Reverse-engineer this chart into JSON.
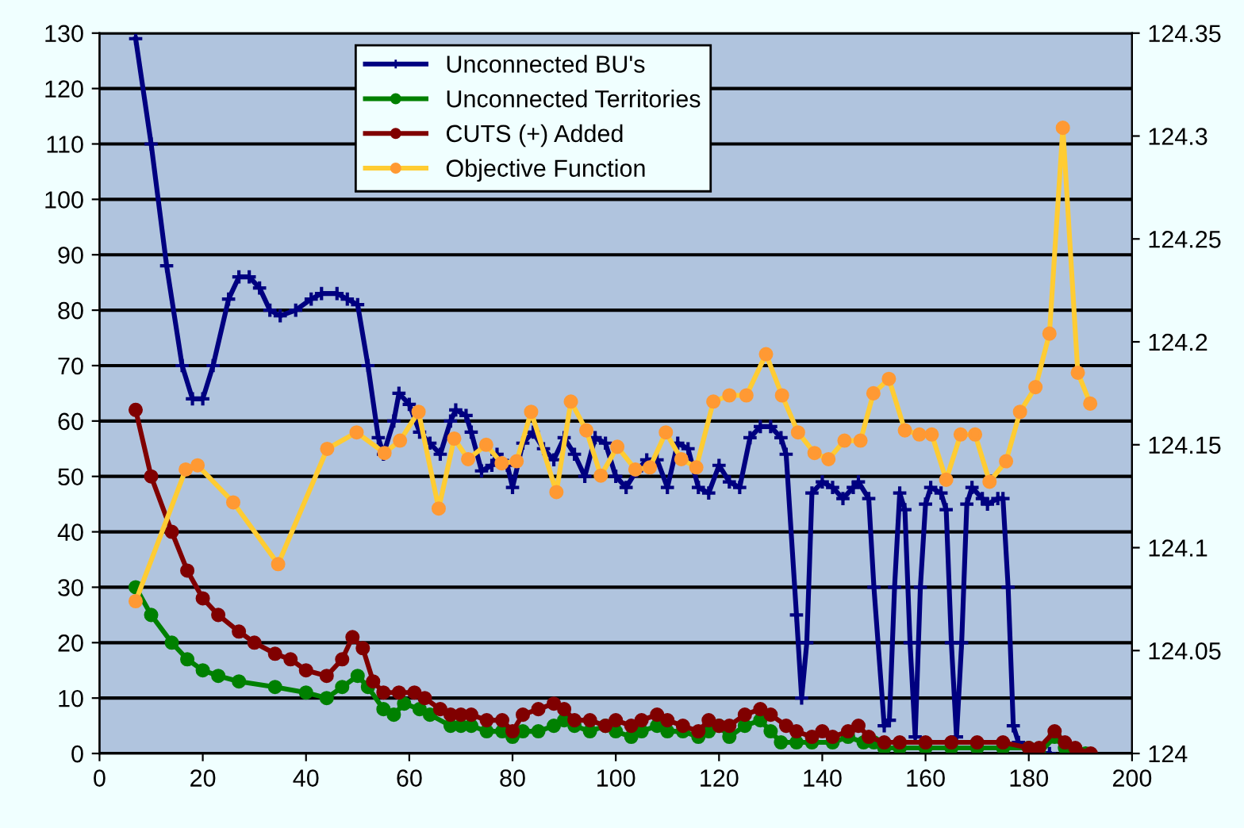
{
  "chart_data": {
    "type": "line",
    "xlim": [
      0,
      200
    ],
    "xticks": [
      0,
      20,
      40,
      60,
      80,
      100,
      120,
      140,
      160,
      180,
      200
    ],
    "ylim": [
      0,
      130
    ],
    "yticks": [
      0,
      10,
      20,
      30,
      40,
      50,
      60,
      70,
      80,
      90,
      100,
      110,
      120,
      130
    ],
    "y2lim": [
      124,
      124.35
    ],
    "y2ticks": [
      124,
      124.05,
      124.1,
      124.15,
      124.2,
      124.25,
      124.3,
      124.35
    ],
    "grid": "y",
    "legend": "top",
    "series": [
      {
        "name": "Unconnected BU's",
        "color": "#000080",
        "marker": "cross",
        "x": [
          7,
          10,
          13,
          16,
          18,
          20,
          22,
          25,
          27,
          29,
          31,
          33,
          35,
          38,
          41,
          43,
          46,
          48,
          50,
          52,
          54,
          55,
          57,
          58,
          60,
          62,
          64,
          66,
          68,
          69,
          71,
          72,
          74,
          76,
          77,
          79,
          80,
          82,
          84,
          86,
          88,
          90,
          92,
          94,
          96,
          98,
          100,
          102,
          104,
          106,
          108,
          110,
          112,
          114,
          116,
          118,
          120,
          122,
          124,
          126,
          128,
          130,
          132,
          133,
          135,
          136,
          137,
          138,
          140,
          142,
          144,
          146,
          147,
          149,
          150,
          152,
          153,
          154,
          155,
          156,
          157,
          158,
          159,
          160,
          161,
          163,
          164,
          165,
          166,
          167,
          168,
          169,
          171,
          172,
          174,
          175,
          176,
          177,
          178,
          180,
          182,
          184
        ],
        "values": [
          129,
          110,
          88,
          70,
          64,
          64,
          70,
          82,
          86,
          86,
          84,
          80,
          79,
          80,
          82,
          83,
          83,
          82,
          81,
          70,
          57,
          54,
          60,
          65,
          63,
          58,
          56,
          54,
          60,
          62,
          61,
          58,
          51,
          52,
          54,
          52,
          48,
          56,
          58,
          55,
          53,
          57,
          54,
          50,
          57,
          56,
          50,
          48,
          51,
          53,
          53,
          48,
          56,
          55,
          48,
          47,
          52,
          49,
          48,
          57,
          59,
          59,
          57,
          54,
          25,
          10,
          20,
          47,
          49,
          48,
          46,
          48,
          49,
          46,
          30,
          5,
          6,
          30,
          47,
          44,
          20,
          3,
          30,
          45,
          48,
          47,
          44,
          20,
          3,
          20,
          45,
          48,
          46,
          45,
          46,
          46,
          30,
          5,
          2,
          1,
          0,
          0
        ]
      },
      {
        "name": "Unconnected Territories",
        "color": "#008000",
        "marker": "circle",
        "x": [
          7,
          10,
          14,
          17,
          20,
          23,
          27,
          34,
          40,
          44,
          47,
          50,
          52,
          55,
          57,
          59,
          62,
          64,
          68,
          70,
          72,
          75,
          78,
          80,
          82,
          85,
          88,
          90,
          92,
          95,
          98,
          100,
          103,
          105,
          108,
          110,
          113,
          116,
          118,
          120,
          122,
          125,
          128,
          130,
          132,
          135,
          138,
          142,
          145,
          148,
          150,
          152,
          155,
          160,
          165,
          170,
          175,
          180,
          182,
          185,
          187,
          189,
          191
        ],
        "values": [
          30,
          25,
          20,
          17,
          15,
          14,
          13,
          12,
          11,
          10,
          12,
          14,
          12,
          8,
          7,
          9,
          8,
          7,
          5,
          5,
          5,
          4,
          4,
          3,
          4,
          4,
          5,
          6,
          5,
          4,
          5,
          4,
          3,
          4,
          5,
          4,
          4,
          3,
          4,
          5,
          3,
          5,
          6,
          4,
          2,
          2,
          2,
          2,
          3,
          2,
          2,
          1,
          1,
          1,
          1,
          1,
          1,
          1,
          0,
          3,
          1,
          0,
          0
        ]
      },
      {
        "name": "CUTS (+) Added",
        "color": "#800000",
        "marker": "circle",
        "x": [
          7,
          10,
          14,
          17,
          20,
          23,
          27,
          30,
          34,
          37,
          40,
          44,
          47,
          49,
          51,
          53,
          55,
          58,
          61,
          63,
          66,
          68,
          70,
          72,
          75,
          78,
          80,
          82,
          85,
          88,
          90,
          92,
          95,
          98,
          100,
          103,
          105,
          108,
          110,
          113,
          116,
          118,
          120,
          122,
          125,
          128,
          130,
          133,
          135,
          138,
          140,
          142,
          145,
          147,
          149,
          152,
          155,
          160,
          165,
          170,
          175,
          180,
          182,
          185,
          187,
          189,
          192
        ],
        "values": [
          62,
          50,
          40,
          33,
          28,
          25,
          22,
          20,
          18,
          17,
          15,
          14,
          17,
          21,
          19,
          13,
          11,
          11,
          11,
          10,
          8,
          7,
          7,
          7,
          6,
          6,
          4,
          7,
          8,
          9,
          8,
          6,
          6,
          5,
          6,
          5,
          6,
          7,
          6,
          5,
          4,
          6,
          5,
          5,
          7,
          8,
          7,
          5,
          4,
          3,
          4,
          3,
          4,
          5,
          3,
          2,
          2,
          2,
          2,
          2,
          2,
          1,
          1,
          4,
          2,
          1,
          0
        ]
      },
      {
        "name": "Objective Function",
        "color": "#ffcc33",
        "marker": "circle",
        "axis": "y2",
        "x": [
          7,
          16.7,
          19,
          25.9,
          34.6,
          44.1,
          49.8,
          55.2,
          58.2,
          61.8,
          65.7,
          68.7,
          71.4,
          74.9,
          77.9,
          80.8,
          83.6,
          88.5,
          91.3,
          94.3,
          97.1,
          100.3,
          103.8,
          106.6,
          109.7,
          112.7,
          115.6,
          118.9,
          122,
          125.3,
          129.1,
          132.2,
          135.3,
          138.5,
          141.2,
          144.3,
          147.4,
          149.9,
          152.9,
          156,
          158.8,
          161.2,
          164,
          166.8,
          169.6,
          172.4,
          175.6,
          178.3,
          181.3,
          184,
          186.6,
          189.5,
          191.9
        ],
        "values": [
          124.074,
          124.138,
          124.14,
          124.122,
          124.092,
          124.148,
          124.156,
          124.146,
          124.152,
          124.166,
          124.119,
          124.153,
          124.143,
          124.15,
          124.141,
          124.142,
          124.166,
          124.127,
          124.171,
          124.157,
          124.135,
          124.149,
          124.138,
          124.139,
          124.156,
          124.143,
          124.139,
          124.171,
          124.174,
          124.174,
          124.194,
          124.174,
          124.156,
          124.146,
          124.143,
          124.152,
          124.152,
          124.175,
          124.182,
          124.157,
          124.155,
          124.155,
          124.133,
          124.155,
          124.155,
          124.132,
          124.142,
          124.166,
          124.178,
          124.204,
          124.304,
          124.185,
          124.17
        ]
      }
    ]
  }
}
